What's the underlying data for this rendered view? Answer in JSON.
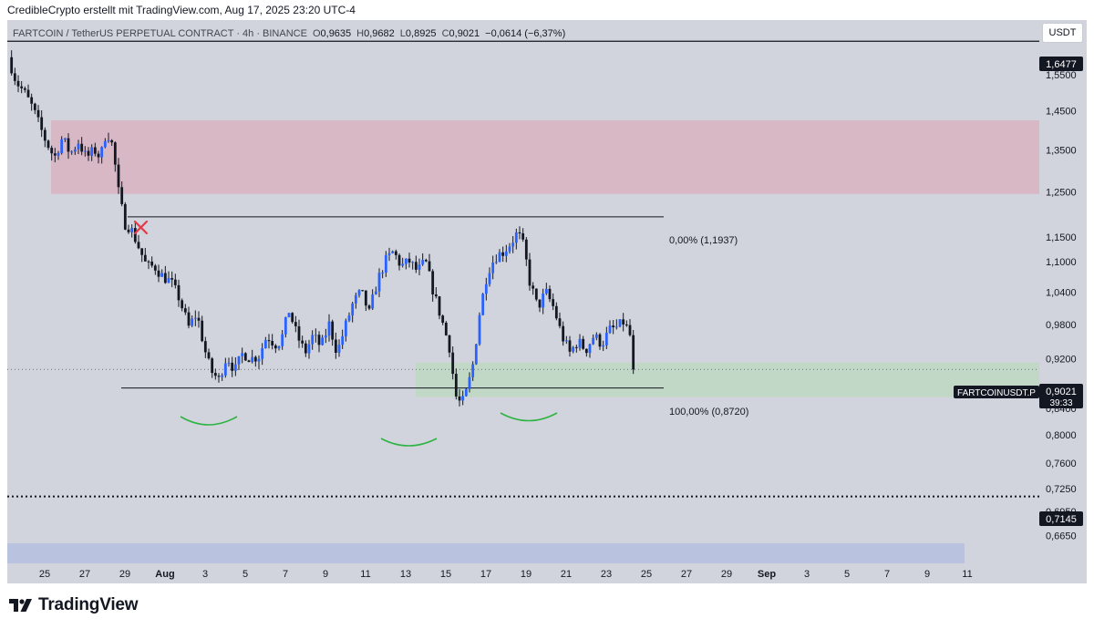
{
  "header": {
    "attribution": "CredibleCrypto erstellt mit TradingView.com, Aug 17, 2025 23:20 UTC-4"
  },
  "legend": {
    "symbol": "FARTCOIN / TetherUS PERPETUAL CONTRACT · 4h · BINANCE",
    "open_label": "O",
    "open": "0,9635",
    "high_label": "H",
    "high": "0,9682",
    "low_label": "L",
    "low": "0,8925",
    "close_label": "C",
    "close": "0,9021",
    "change": "−0,0614 (−6,37%)"
  },
  "currency_button": "USDT",
  "brand": {
    "name": "TradingView"
  },
  "price_tag": {
    "symbol": "FARTCOINUSDT.P",
    "price": "0,9021",
    "countdown": "39:33"
  },
  "level_tags": {
    "top": "1,6477",
    "bottom": "0,7145"
  },
  "colors": {
    "plot_bg": "#d1d4dc",
    "supply_zone": "#d9b8c6",
    "demand_zone": "#c2d8c6",
    "bottom_band": "#b9c3e0",
    "candle_up": "#2962ff",
    "candle_down": "#131722",
    "arc": "#2fb344",
    "cross": "#e53949"
  },
  "icons": {
    "brand_logo": "tradingview-logo-icon",
    "invalidation_mark": "cross-mark-icon"
  },
  "chart_data": {
    "type": "candlestick",
    "interval": "4h",
    "currency": "USDT",
    "y_axis": {
      "scale": "log",
      "range": [
        0.632,
        1.713
      ],
      "ticks": [
        "1,5500",
        "1,4500",
        "1,3500",
        "1,2500",
        "1,1500",
        "1,1000",
        "1,0400",
        "0,9800",
        "0,9200",
        "0,8400",
        "0,8000",
        "0,7600",
        "0,7250",
        "0,6950",
        "0,6650"
      ]
    },
    "x_axis": {
      "ticks": [
        "25",
        "27",
        "29",
        "Aug",
        "3",
        "5",
        "7",
        "9",
        "11",
        "13",
        "15",
        "17",
        "19",
        "21",
        "23",
        "25",
        "27",
        "29",
        "Sep",
        "3",
        "5",
        "7",
        "9",
        "11"
      ]
    },
    "horizontal_levels": {
      "top": 1.6477,
      "bottom": 0.7145,
      "last_price": 0.9021
    },
    "fib_levels": [
      {
        "label": "0,00% (1,1937)",
        "value": 1.1937
      },
      {
        "label": "100,00% (0,8720)",
        "value": 0.872
      }
    ],
    "zones": [
      {
        "kind": "supply",
        "from": 1.245,
        "to": 1.425
      },
      {
        "kind": "demand",
        "from": 0.8575,
        "to": 0.9135
      }
    ],
    "price_path": [
      [
        23.6,
        1.6
      ],
      [
        24.0,
        1.53
      ],
      [
        24.4,
        1.5
      ],
      [
        24.8,
        1.46
      ],
      [
        25.4,
        1.38
      ],
      [
        25.9,
        1.33
      ],
      [
        26.3,
        1.38
      ],
      [
        26.7,
        1.34
      ],
      [
        27.1,
        1.37
      ],
      [
        27.5,
        1.33
      ],
      [
        27.9,
        1.35
      ],
      [
        28.2,
        1.33
      ],
      [
        28.5,
        1.4
      ],
      [
        28.8,
        1.36
      ],
      [
        29.1,
        1.25
      ],
      [
        29.4,
        1.18
      ],
      [
        29.7,
        1.17
      ],
      [
        30.1,
        1.13
      ],
      [
        30.5,
        1.09
      ],
      [
        30.9,
        1.09
      ],
      [
        31.3,
        1.07
      ],
      [
        31.7,
        1.06
      ],
      [
        32.1,
        1.03
      ],
      [
        32.6,
        0.975
      ],
      [
        33.0,
        1.0
      ],
      [
        33.4,
        0.935
      ],
      [
        33.7,
        0.9
      ],
      [
        34.1,
        0.885
      ],
      [
        34.5,
        0.925
      ],
      [
        34.9,
        0.9
      ],
      [
        35.3,
        0.93
      ],
      [
        35.7,
        0.92
      ],
      [
        36.1,
        0.925
      ],
      [
        36.5,
        0.96
      ],
      [
        36.9,
        0.945
      ],
      [
        37.2,
        0.95
      ],
      [
        37.6,
        1.005
      ],
      [
        38.0,
        0.96
      ],
      [
        38.4,
        0.93
      ],
      [
        38.8,
        0.96
      ],
      [
        39.2,
        0.94
      ],
      [
        39.6,
        0.98
      ],
      [
        40.0,
        0.93
      ],
      [
        40.4,
        0.975
      ],
      [
        40.8,
        1.02
      ],
      [
        41.2,
        1.04
      ],
      [
        41.6,
        1.0
      ],
      [
        42.0,
        1.06
      ],
      [
        42.4,
        1.1
      ],
      [
        42.8,
        1.12
      ],
      [
        43.2,
        1.09
      ],
      [
        43.6,
        1.1
      ],
      [
        44.0,
        1.08
      ],
      [
        44.4,
        1.1
      ],
      [
        44.8,
        1.04
      ],
      [
        45.2,
        0.99
      ],
      [
        45.6,
        0.94
      ],
      [
        45.9,
        0.86
      ],
      [
        46.2,
        0.845
      ],
      [
        46.5,
        0.87
      ],
      [
        46.8,
        0.915
      ],
      [
        47.1,
        1.0
      ],
      [
        47.5,
        1.08
      ],
      [
        47.9,
        1.11
      ],
      [
        48.3,
        1.12
      ],
      [
        48.7,
        1.14
      ],
      [
        49.0,
        1.16
      ],
      [
        49.3,
        1.13
      ],
      [
        49.6,
        1.06
      ],
      [
        50.0,
        1.01
      ],
      [
        50.4,
        1.04
      ],
      [
        50.8,
        1.01
      ],
      [
        51.2,
        0.96
      ],
      [
        51.6,
        0.93
      ],
      [
        52.0,
        0.95
      ],
      [
        52.4,
        0.935
      ],
      [
        52.8,
        0.96
      ],
      [
        53.2,
        0.945
      ],
      [
        53.6,
        0.97
      ],
      [
        54.0,
        0.975
      ],
      [
        54.3,
        0.985
      ],
      [
        54.6,
        0.96
      ],
      [
        54.9,
        0.9021
      ]
    ]
  }
}
